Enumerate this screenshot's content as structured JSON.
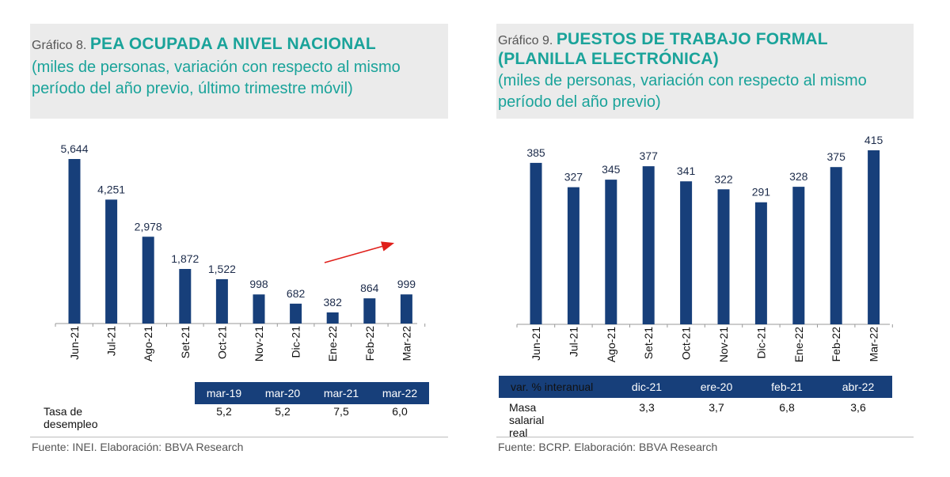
{
  "left": {
    "label": "Gráfico 8.",
    "title": "PEA OCUPADA A NIVEL NACIONAL",
    "subtitle_line1": "(miles de personas, variación con respecto al mismo",
    "subtitle_line2": "período del año previo, último trimestre móvil)",
    "table": {
      "headers": [
        "mar-19",
        "mar-20",
        "mar-21",
        "mar-22"
      ],
      "row_label": "Tasa de desempleo",
      "values": [
        "5,2",
        "5,2",
        "7,5",
        "6,0"
      ]
    },
    "source": "Fuente: INEI. Elaboración: BBVA Research"
  },
  "right": {
    "label": "Gráfico 9.",
    "title_line1": "PUESTOS DE TRABAJO FORMAL",
    "title_line2": "(PLANILLA ELECTRÓNICA)",
    "subtitle_line1": "(miles de personas, variación con respecto al mismo",
    "subtitle_line2": "período del año previo)",
    "table": {
      "header_label": "var. % interanual",
      "headers": [
        "dic-21",
        "ere-20",
        "feb-21",
        "abr-22"
      ],
      "row_label": "Masa salarial real",
      "values": [
        "3,3",
        "3,7",
        "6,8",
        "3,6"
      ]
    },
    "source": "Fuente: BCRP. Elaboración: BBVA Research"
  },
  "colors": {
    "bar": "#173f7a",
    "accent": "#1aa39a",
    "arrow": "#e0201b",
    "axis": "#999999"
  },
  "chart_data": [
    {
      "type": "bar",
      "title": "PEA OCUPADA A NIVEL NACIONAL",
      "categories": [
        "Jun-21",
        "Jul-21",
        "Ago-21",
        "Set-21",
        "Oct-21",
        "Nov-21",
        "Dic-21",
        "Ene-22",
        "Feb-22",
        "Mar-22"
      ],
      "values": [
        5644,
        4251,
        2978,
        1872,
        1522,
        998,
        682,
        382,
        864,
        999
      ],
      "value_labels": [
        "5,644",
        "4,251",
        "2,978",
        "1,872",
        "1,522",
        "998",
        "682",
        "382",
        "864",
        "999"
      ],
      "ylim": [
        0,
        5644
      ],
      "annotation": "rising-trend-arrow"
    },
    {
      "type": "bar",
      "title": "PUESTOS DE TRABAJO FORMAL (PLANILLA ELECTRÓNICA)",
      "categories": [
        "Jun-21",
        "Jul-21",
        "Ago-21",
        "Set-21",
        "Oct-21",
        "Nov-21",
        "Dic-21",
        "Ene-22",
        "Feb-22",
        "Mar-22"
      ],
      "values": [
        385,
        327,
        345,
        377,
        341,
        322,
        291,
        328,
        375,
        415
      ],
      "value_labels": [
        "385",
        "327",
        "345",
        "377",
        "341",
        "322",
        "291",
        "328",
        "375",
        "415"
      ],
      "ylim": [
        0,
        415
      ]
    }
  ]
}
